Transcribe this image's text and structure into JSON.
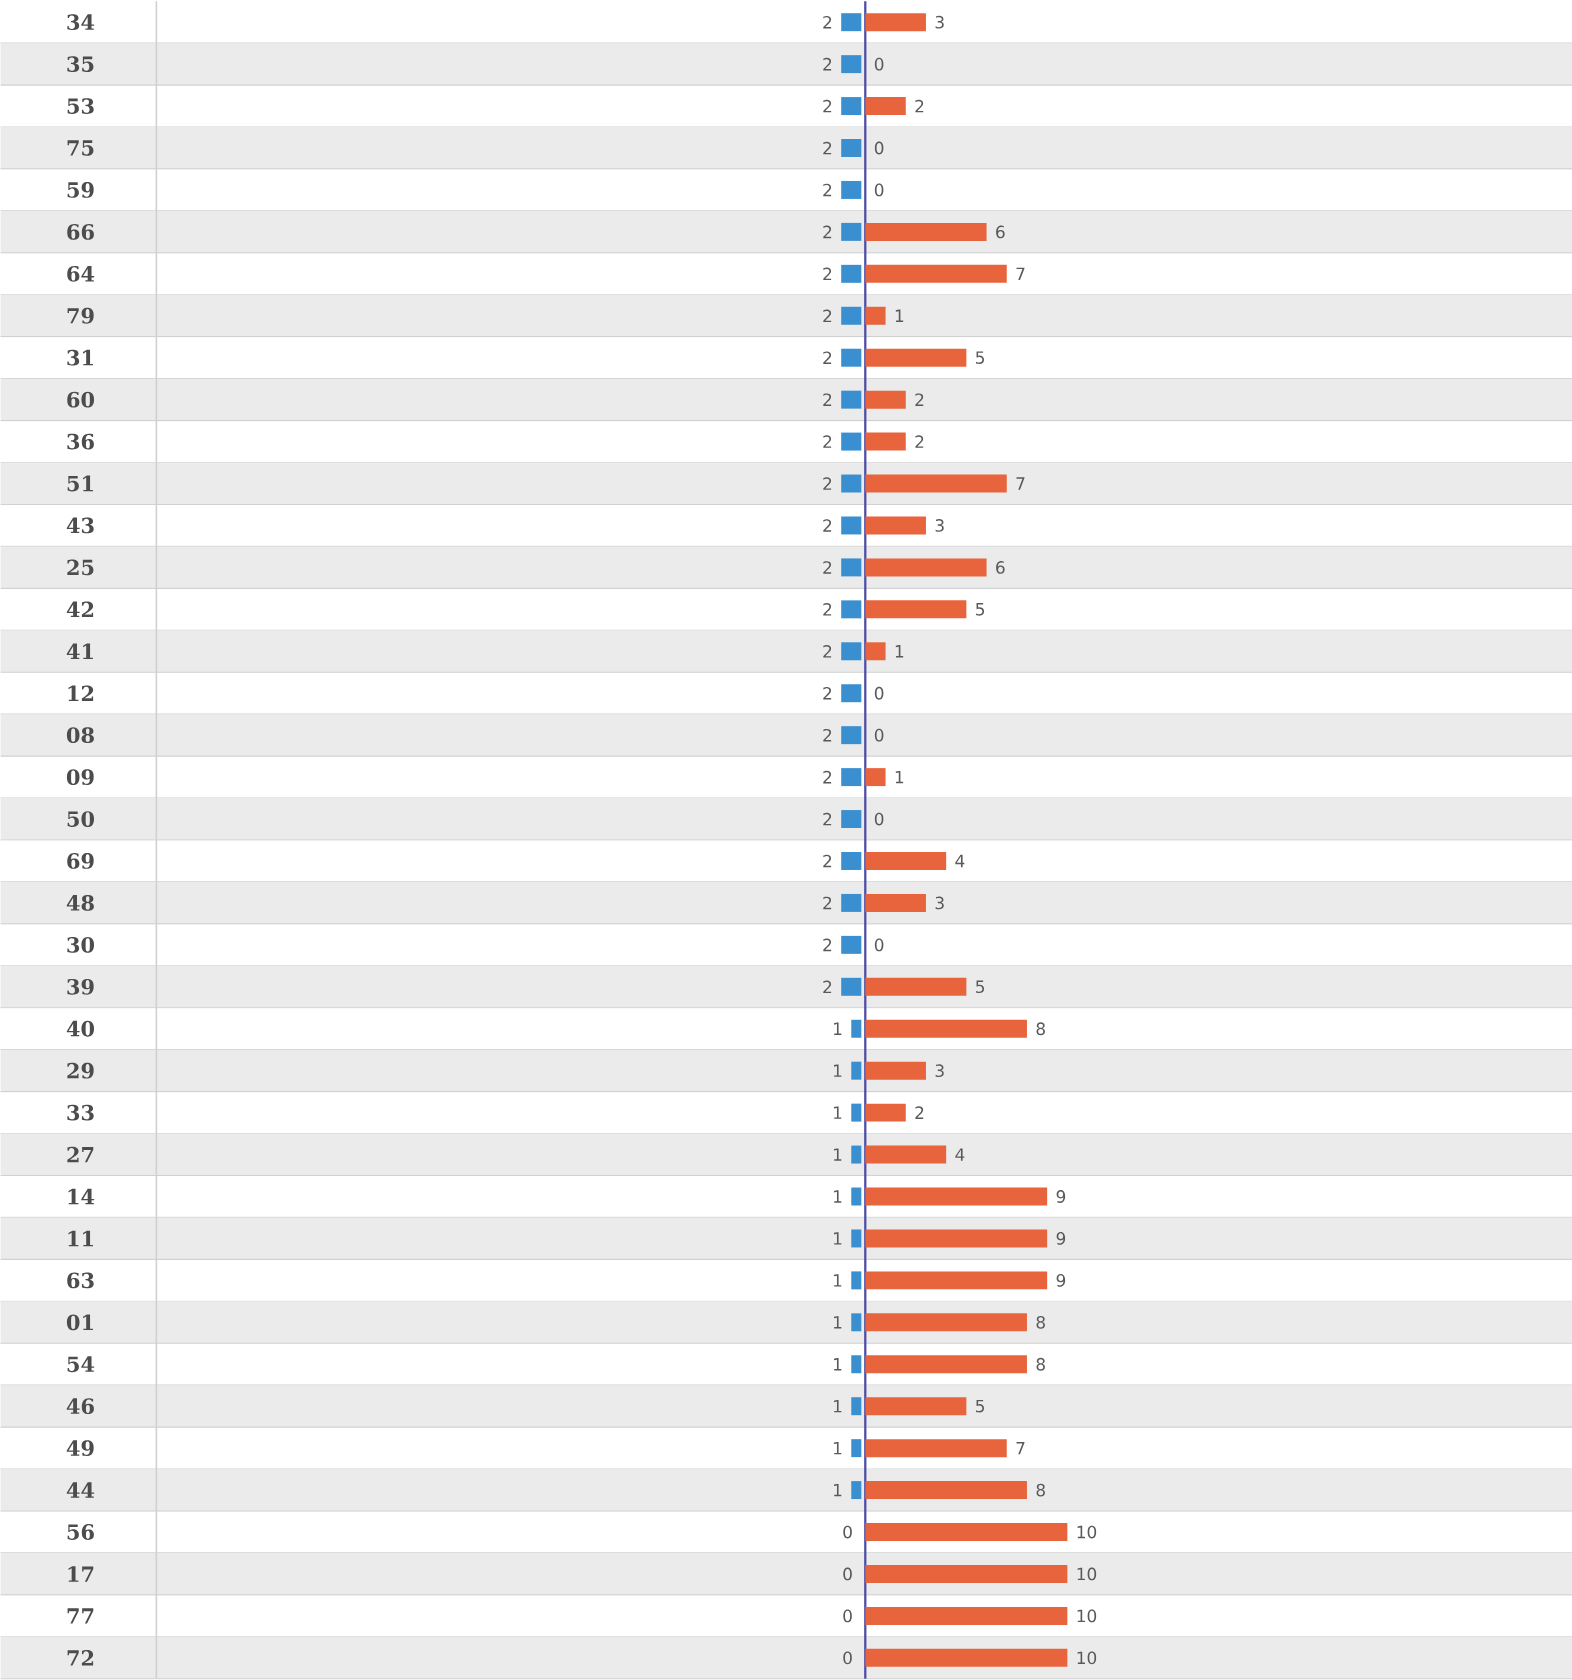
{
  "chart_data": [
    {
      "type": "bar",
      "orientation": "horizontal",
      "data_labels": true,
      "xlim": [
        70,
        0
      ],
      "categories": [
        "34",
        "35",
        "53",
        "75",
        "59",
        "66",
        "64",
        "79",
        "31",
        "60",
        "36",
        "51",
        "43",
        "25",
        "42",
        "41",
        "12",
        "08",
        "09",
        "50",
        "69",
        "48",
        "30",
        "39",
        "40",
        "29",
        "33",
        "27",
        "14",
        "11",
        "63",
        "01",
        "54",
        "46",
        "49",
        "44",
        "56",
        "17",
        "77",
        "72"
      ],
      "series": [
        {
          "color": "#3a8fd0",
          "values": [
            2,
            2,
            2,
            2,
            2,
            2,
            2,
            2,
            2,
            2,
            2,
            2,
            2,
            2,
            2,
            2,
            2,
            2,
            2,
            2,
            2,
            2,
            2,
            2,
            1,
            1,
            1,
            1,
            1,
            1,
            1,
            1,
            1,
            1,
            1,
            1,
            0,
            0,
            0,
            0
          ]
        }
      ]
    },
    {
      "type": "bar",
      "orientation": "horizontal",
      "data_labels": true,
      "xlim": [
        0,
        35
      ],
      "tick_labels": false,
      "categories": [
        "34",
        "35",
        "53",
        "75",
        "59",
        "66",
        "64",
        "79",
        "31",
        "60",
        "36",
        "51",
        "43",
        "25",
        "42",
        "41",
        "12",
        "08",
        "09",
        "50",
        "69",
        "48",
        "30",
        "39",
        "40",
        "29",
        "33",
        "27",
        "14",
        "11",
        "63",
        "01",
        "54",
        "46",
        "49",
        "44",
        "56",
        "17",
        "77",
        "72"
      ],
      "series": [
        {
          "color": "#e8643c",
          "values": [
            3,
            0,
            2,
            0,
            0,
            6,
            7,
            1,
            5,
            2,
            2,
            7,
            3,
            6,
            5,
            1,
            0,
            0,
            1,
            0,
            4,
            3,
            0,
            5,
            8,
            3,
            2,
            4,
            9,
            9,
            9,
            8,
            8,
            5,
            7,
            8,
            10,
            10,
            10,
            10
          ]
        }
      ]
    }
  ]
}
